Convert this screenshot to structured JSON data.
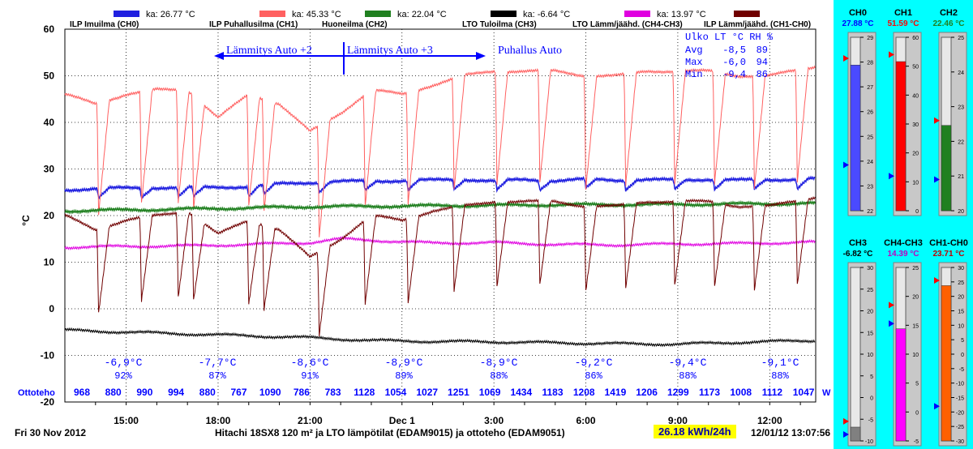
{
  "legend": [
    {
      "label": "ILP Imuilma (CH0)",
      "avg": "ka: 26.77 °C",
      "color": "#2020e0"
    },
    {
      "label": "ILP Puhallusilma (CH1)",
      "avg": "ka: 45.33 °C",
      "color": "#ff6060"
    },
    {
      "label": "Huoneilma (CH2)",
      "avg": "ka: 22.04 °C",
      "color": "#208020"
    },
    {
      "label": "LTO Tuloilma (CH3)",
      "avg": "ka: -6.64 °C",
      "color": "#000000"
    },
    {
      "label": "LTO Lämm/jäähd. (CH4-CH3)",
      "avg": "ka: 13.97 °C",
      "color": "#e000e0"
    },
    {
      "label": "ILP Lämm/jäähd. (CH1-CH0)",
      "avg": "",
      "color": "#700000"
    }
  ],
  "annotations": {
    "mode1": "Lämmitys Auto +2",
    "mode2": "Lämmitys Auto +3",
    "mode3": "Puhallus Auto",
    "stats_header": "Ulko LT °C RH %",
    "stats_rows": [
      {
        "label": "Avg",
        "temp": "-8,5",
        "rh": "89"
      },
      {
        "label": "Max",
        "temp": "-6,0",
        "rh": "94"
      },
      {
        "label": "Min",
        "temp": "-9,4",
        "rh": "86"
      }
    ]
  },
  "weather": [
    {
      "temp": "-6,9°C",
      "rh": "92%"
    },
    {
      "temp": "-7,7°C",
      "rh": "87%"
    },
    {
      "temp": "-8,6°C",
      "rh": "91%"
    },
    {
      "temp": "-8,9°C",
      "rh": "89%"
    },
    {
      "temp": "-8,9°C",
      "rh": "88%"
    },
    {
      "temp": "-9,2°C",
      "rh": "86%"
    },
    {
      "temp": "-9,4°C",
      "rh": "88%"
    },
    {
      "temp": "-9,1°C",
      "rh": "88%"
    }
  ],
  "ottoteho": {
    "label": "Ottoteho",
    "unit": "W",
    "values": [
      "968",
      "880",
      "990",
      "994",
      "880",
      "767",
      "1090",
      "786",
      "783",
      "1128",
      "1054",
      "1027",
      "1251",
      "1069",
      "1434",
      "1183",
      "1208",
      "1419",
      "1206",
      "1299",
      "1173",
      "1008",
      "1112",
      "1047"
    ]
  },
  "footer": {
    "date": "Fri 30 Nov 2012",
    "title": "Hitachi 18SX8 120 m² ja LTO lämpötilat (EDAM9015) ja ottoteho (EDAM9051)",
    "kwh": "26.18 kWh/24h",
    "timestamp": "12/01/12 13:07:56"
  },
  "gauges": [
    {
      "name": "CH0",
      "value": "27.88 °C",
      "color": "#4a4aff",
      "value_color": "#0000ff",
      "scale": [
        "22",
        "23",
        "24",
        "25",
        "26",
        "27",
        "28",
        "29"
      ],
      "min": 22,
      "max": 29,
      "level": 27.88,
      "marker_red": 28.15,
      "marker_blue": 23.85
    },
    {
      "name": "CH1",
      "value": "51.59 °C",
      "color": "#ff0000",
      "value_color": "#ff0000",
      "scale": [
        "0",
        "10",
        "20",
        "30",
        "40",
        "50",
        "60"
      ],
      "min": 0,
      "max": 60,
      "level": 51.59,
      "marker_red": 54,
      "marker_blue": 12
    },
    {
      "name": "CH2",
      "value": "22.46 °C",
      "color": "#208020",
      "value_color": "#208020",
      "scale": [
        "20",
        "21",
        "22",
        "23",
        "24",
        "25"
      ],
      "min": 20,
      "max": 25,
      "level": 22.46,
      "marker_red": 22.6,
      "marker_blue": 20.9
    },
    {
      "name": "CH3",
      "value": "-6.82 °C",
      "color": "#808080",
      "value_color": "#000000",
      "scale": [
        "-10",
        "-5",
        "0",
        "5",
        "10",
        "15",
        "20",
        "25",
        "30"
      ],
      "min": -10,
      "max": 30,
      "level": -6.82,
      "marker_red": -5.5,
      "marker_blue": -8.5
    },
    {
      "name": "CH4-CH3",
      "value": "14.39 °C",
      "color": "#ff00ff",
      "value_color": "#c000c0",
      "scale": [
        "-5",
        "0",
        "5",
        "10",
        "15",
        "20",
        "25"
      ],
      "min": -5,
      "max": 25,
      "level": 14.39,
      "marker_red": 18.5,
      "marker_blue": 15.3
    },
    {
      "name": "CH1-CH0",
      "value": "23.71 °C",
      "color": "#ff6000",
      "value_color": "#c00000",
      "scale": [
        "-30",
        "-25",
        "-20",
        "-15",
        "-10",
        "-5",
        "0",
        "5",
        "10",
        "15",
        "20",
        "25",
        "30"
      ],
      "min": -30,
      "max": 30,
      "level": 23.71,
      "marker_red": 25.5,
      "marker_blue": -18
    }
  ],
  "chart_data": {
    "type": "line",
    "ylabel": "°C",
    "ylim": [
      -20,
      60
    ],
    "yticks": [
      "60",
      "50",
      "40",
      "30",
      "20",
      "10",
      "0",
      "-10",
      "-20"
    ],
    "xlim": [
      "2012-11-30 13:00",
      "2012-12-01 13:30"
    ],
    "xticks": [
      "15:00",
      "18:00",
      "21:00",
      "Dec 1",
      "3:00",
      "6:00",
      "9:00",
      "12:00"
    ],
    "grid": true,
    "series": [
      {
        "name": "ILP Imuilma (CH0)",
        "color": "#2020e0",
        "x_hours": [
          13,
          14,
          15,
          16,
          17,
          18,
          19,
          20,
          21,
          22,
          23,
          24,
          25,
          26,
          27,
          28,
          29,
          30,
          31,
          32,
          33,
          34,
          35,
          36,
          37.5
        ],
        "values": [
          25.5,
          25.8,
          25.9,
          26,
          26,
          26.1,
          26.2,
          26.8,
          27.1,
          27.3,
          27.4,
          27.5,
          27.6,
          27.8,
          27.4,
          27.7,
          27.5,
          27.8,
          27.6,
          27.7,
          27.6,
          27.8,
          27.6,
          27.7,
          27.9
        ]
      },
      {
        "name": "ILP Puhallusilma (CH1)",
        "color": "#ff6060",
        "x_hours": [
          13,
          14,
          15,
          16,
          17,
          18,
          19,
          20,
          21,
          22,
          23,
          24,
          25,
          26,
          27,
          28,
          29,
          30,
          31,
          32,
          33,
          34,
          35,
          36,
          37.5
        ],
        "values": [
          46,
          44,
          46,
          47,
          47,
          41,
          46,
          44,
          38,
          42,
          47,
          46,
          48,
          50,
          51,
          51,
          51,
          50,
          50,
          51,
          51,
          51,
          50,
          50,
          52
        ]
      },
      {
        "name": "Huoneilma (CH2)",
        "color": "#208020",
        "x_hours": [
          13,
          17,
          21,
          25,
          29,
          33,
          37.5
        ],
        "values": [
          21.0,
          21.4,
          21.9,
          22.1,
          22.3,
          22.4,
          22.6
        ]
      },
      {
        "name": "LTO Tuloilma (CH3)",
        "color": "#000000",
        "x_hours": [
          13,
          15,
          17,
          19,
          21,
          23,
          25,
          27,
          29,
          31,
          33,
          35,
          37.5
        ],
        "values": [
          -4.6,
          -5.0,
          -5.4,
          -5.8,
          -6.2,
          -6.8,
          -7.0,
          -7.1,
          -7.3,
          -7.5,
          -7.6,
          -7.2,
          -6.8
        ]
      },
      {
        "name": "LTO Lämm/jäähd. (CH4-CH3)",
        "color": "#e000e0",
        "x_hours": [
          13,
          15,
          17,
          19,
          21,
          22,
          23,
          25,
          27,
          29,
          31,
          33,
          35,
          37.5
        ],
        "values": [
          13.2,
          13.4,
          13.5,
          13.8,
          14.2,
          15.0,
          14.7,
          14.1,
          14.2,
          13.8,
          13.7,
          13.9,
          14.0,
          14.3
        ]
      },
      {
        "name": "ILP Lämm/jäähd. (CH1-CH0)",
        "color": "#700000",
        "x_hours": [
          13,
          14,
          15,
          16,
          17,
          18,
          19,
          20,
          21,
          22,
          23,
          24,
          25,
          26,
          27,
          28,
          29,
          30,
          31,
          32,
          33,
          34,
          35,
          36,
          37.5
        ],
        "values": [
          20,
          17,
          19,
          20,
          21,
          16,
          19,
          17,
          11,
          15,
          20,
          19,
          21,
          22,
          23,
          23,
          23,
          22,
          22,
          23,
          23,
          23,
          22,
          22,
          24
        ]
      }
    ],
    "defrost_dips_hours": [
      14.1,
      15.5,
      16.7,
      17.2,
      19.0,
      19.5,
      21.3,
      22.8,
      24.2,
      25.7,
      27.1,
      28.5,
      30.0,
      31.3,
      32.9,
      34.2,
      35.5,
      36.9
    ]
  }
}
